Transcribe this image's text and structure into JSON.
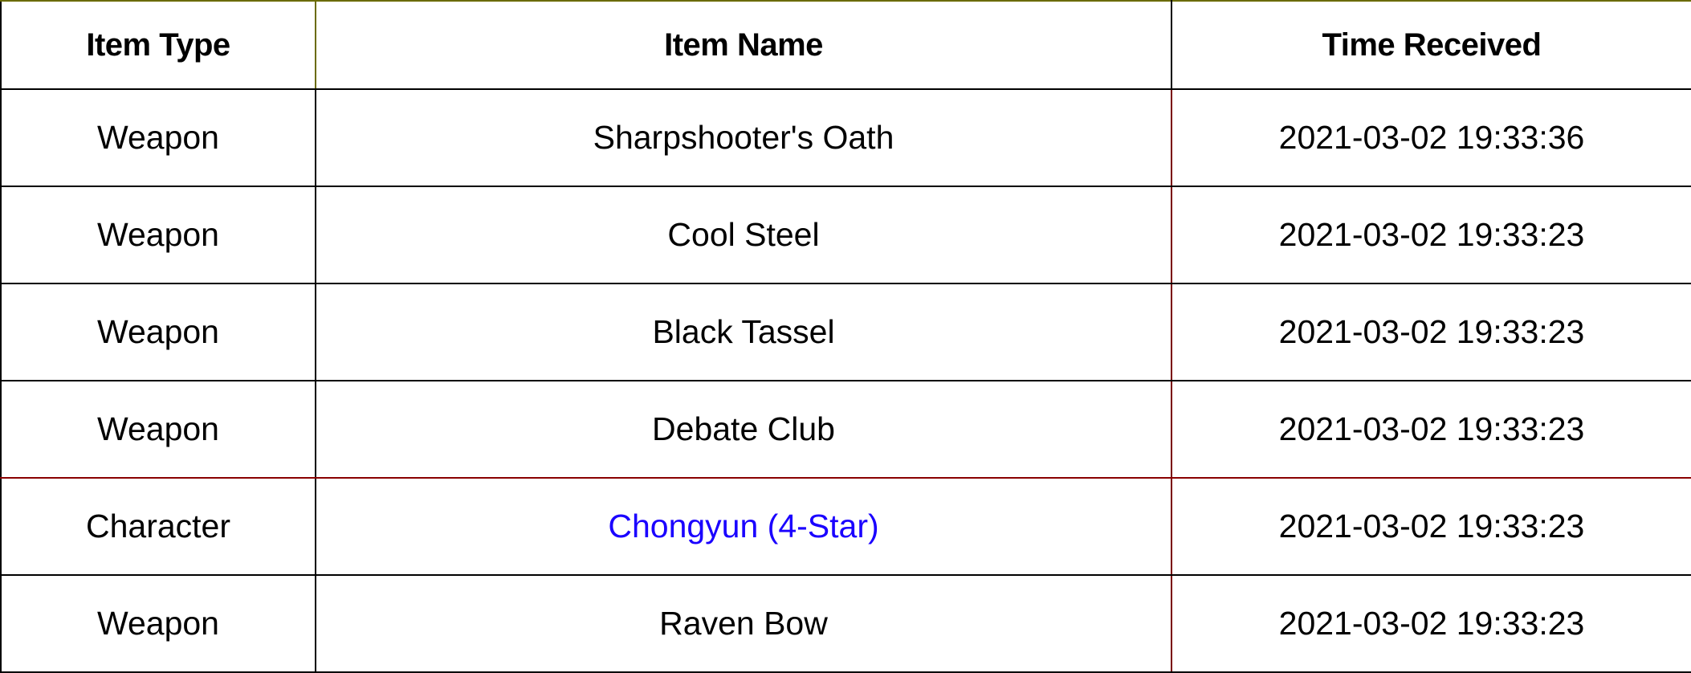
{
  "table": {
    "headers": {
      "item_type": "Item Type",
      "item_name": "Item Name",
      "time_received": "Time Received"
    },
    "rows": [
      {
        "item_type": "Weapon",
        "item_name": "Sharpshooter's Oath",
        "time_received": "2021-03-02 19:33:36",
        "name_color": "#000000"
      },
      {
        "item_type": "Weapon",
        "item_name": "Cool Steel",
        "time_received": "2021-03-02 19:33:23",
        "name_color": "#000000"
      },
      {
        "item_type": "Weapon",
        "item_name": "Black Tassel",
        "time_received": "2021-03-02 19:33:23",
        "name_color": "#000000"
      },
      {
        "item_type": "Weapon",
        "item_name": "Debate Club",
        "time_received": "2021-03-02 19:33:23",
        "name_color": "#000000"
      },
      {
        "item_type": "Character",
        "item_name": "Chongyun (4-Star)",
        "time_received": "2021-03-02 19:33:23",
        "name_color": "#1a00ff"
      },
      {
        "item_type": "Weapon",
        "item_name": "Raven Bow",
        "time_received": "2021-03-02 19:33:23",
        "name_color": "#000000"
      }
    ]
  },
  "colors": {
    "border": "#000000",
    "four_star_character": "#1a00ff",
    "text": "#000000",
    "background": "#ffffff"
  }
}
